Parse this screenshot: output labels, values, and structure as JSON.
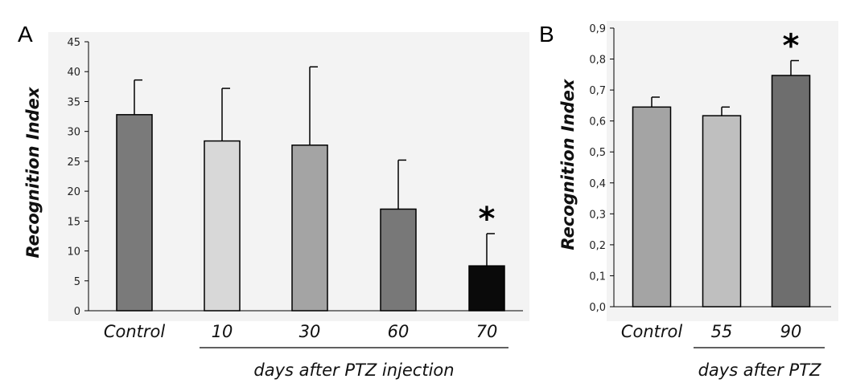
{
  "chart_data": [
    {
      "type": "bar",
      "panel_label": "A",
      "ylabel": "Recognition Index",
      "ylim": [
        0,
        45
      ],
      "yticks": [
        "0",
        "5",
        "10",
        "15",
        "20",
        "25",
        "30",
        "35",
        "40",
        "45"
      ],
      "categories": [
        "Control",
        "10",
        "30",
        "60",
        "70"
      ],
      "values": [
        32.8,
        28.4,
        27.7,
        17.0,
        7.5
      ],
      "errors": [
        5.8,
        8.8,
        13.1,
        8.2,
        5.4
      ],
      "colors": [
        "#7a7a7a",
        "#d8d8d8",
        "#a4a4a4",
        "#787878",
        "#0a0a0a"
      ],
      "significance": [
        "",
        "",
        "",
        "",
        "*"
      ],
      "group_label": "days after PTZ injection",
      "grid": false
    },
    {
      "type": "bar",
      "panel_label": "B",
      "ylabel": "Recognition Index",
      "ylim": [
        0,
        0.9
      ],
      "yticks": [
        "0,0",
        "0,1",
        "0,2",
        "0,3",
        "0,4",
        "0,5",
        "0,6",
        "0,7",
        "0,8",
        "0,9"
      ],
      "categories": [
        "Control",
        "55",
        "90"
      ],
      "values": [
        0.645,
        0.617,
        0.747
      ],
      "errors": [
        0.032,
        0.028,
        0.048
      ],
      "colors": [
        "#a4a4a4",
        "#bfbfbf",
        "#6e6e6e"
      ],
      "significance": [
        "",
        "",
        "*"
      ],
      "group_label": "days after PTZ",
      "grid": false
    }
  ]
}
